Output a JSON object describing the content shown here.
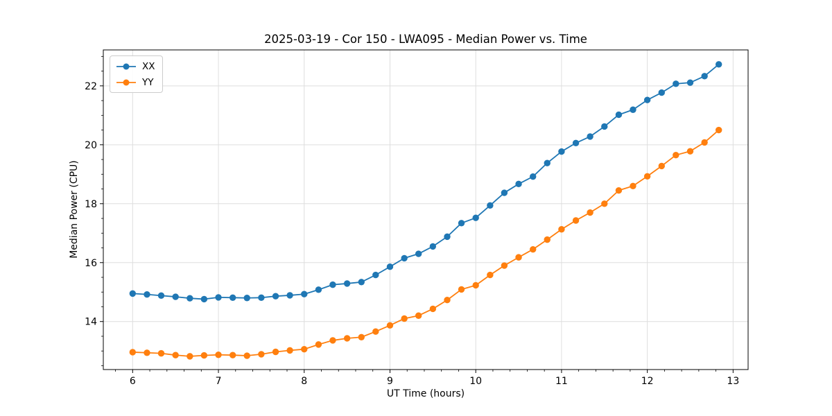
{
  "chart_data": {
    "type": "line",
    "title": "2025-03-19 - Cor 150 - LWA095 - Median Power vs. Time",
    "xlabel": "UT Time (hours)",
    "ylabel": "Median Power (CPU)",
    "xlim": [
      5.658,
      13.175
    ],
    "ylim": [
      12.37,
      23.22
    ],
    "x_ticks": [
      6,
      7,
      8,
      9,
      10,
      11,
      12,
      13
    ],
    "y_ticks": [
      14,
      16,
      18,
      20,
      22
    ],
    "x_minor_step": 0.2,
    "y_minor_step": 0.5,
    "grid": true,
    "grid_color": "#dedede",
    "legend_position": "upper-left",
    "x": [
      6,
      6.167,
      6.333,
      6.5,
      6.667,
      6.833,
      7,
      7.167,
      7.333,
      7.5,
      7.667,
      7.833,
      8,
      8.167,
      8.333,
      8.5,
      8.667,
      8.833,
      9,
      9.167,
      9.333,
      9.5,
      9.667,
      9.833,
      10,
      10.167,
      10.333,
      10.5,
      10.667,
      10.833,
      11,
      11.167,
      11.333,
      11.5,
      11.667,
      11.833,
      12,
      12.167,
      12.333,
      12.5,
      12.667,
      12.833
    ],
    "series": [
      {
        "name": "XX",
        "color": "#1f77b4",
        "values": [
          14.95,
          14.92,
          14.88,
          14.84,
          14.79,
          14.76,
          14.82,
          14.81,
          14.8,
          14.81,
          14.86,
          14.89,
          14.93,
          15.08,
          15.25,
          15.29,
          15.34,
          15.58,
          15.86,
          16.15,
          16.3,
          16.55,
          16.88,
          17.34,
          17.52,
          17.94,
          18.37,
          18.67,
          18.92,
          19.38,
          19.77,
          20.06,
          20.28,
          20.62,
          21.02,
          21.19,
          21.52,
          21.77,
          22.07,
          22.11,
          22.33,
          22.73
        ]
      },
      {
        "name": "YY",
        "color": "#ff7f0e",
        "values": [
          12.96,
          12.94,
          12.92,
          12.86,
          12.82,
          12.85,
          12.87,
          12.86,
          12.84,
          12.89,
          12.97,
          13.02,
          13.06,
          13.22,
          13.36,
          13.43,
          13.47,
          13.66,
          13.87,
          14.1,
          14.2,
          14.43,
          14.73,
          15.09,
          15.23,
          15.58,
          15.9,
          16.18,
          16.45,
          16.78,
          17.13,
          17.43,
          17.7,
          18.0,
          18.45,
          18.6,
          18.93,
          19.28,
          19.65,
          19.78,
          20.08,
          20.5
        ]
      }
    ]
  }
}
